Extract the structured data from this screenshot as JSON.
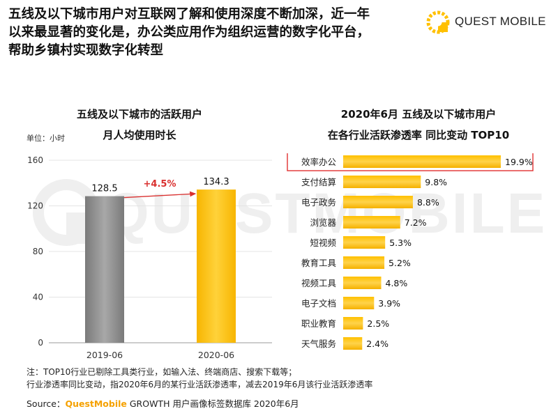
{
  "header": {
    "title_lines": [
      "五线及以下城市用户对互联网了解和使用深度不断加深，近一年",
      "以来最显著的变化是，办公类应用作为组织运营的数字化平台，",
      "帮助乡镇村实现数字化转型"
    ],
    "logo_text": "QUEST MOBILE",
    "watermark_text": "QUESTMOBILE"
  },
  "left_chart": {
    "title_line1": "五线及以下城市的活跃用户",
    "title_line2": "月人均使用时长",
    "unit_label": "单位：小时",
    "growth_label": "+4.5%"
  },
  "right_chart": {
    "title_line1": "2020年6月  五线及以下城市用户",
    "title_line2": "在各行业活跃渗透率 同比变动 TOP10"
  },
  "chart_data": [
    {
      "type": "bar",
      "categories": [
        "2019-06",
        "2020-06"
      ],
      "values": [
        128.5,
        134.3
      ],
      "value_labels": [
        "128.5",
        "134.3"
      ],
      "title": "五线及以下城市的活跃用户 月人均使用时长",
      "ylabel": "单位：小时",
      "ylim": [
        0,
        160
      ],
      "yticks": [
        "0",
        "40",
        "80",
        "120",
        "160"
      ],
      "annotation": "+4.5%",
      "colors": [
        "#8c8c8c",
        "#ffc000"
      ]
    },
    {
      "type": "bar",
      "orientation": "horizontal",
      "categories": [
        "效率办公",
        "支付结算",
        "电子政务",
        "浏览器",
        "短视频",
        "教育工具",
        "视频工具",
        "电子文档",
        "职业教育",
        "天气服务"
      ],
      "values": [
        19.9,
        9.8,
        8.8,
        7.2,
        5.3,
        5.2,
        4.8,
        3.9,
        2.5,
        2.4
      ],
      "value_labels": [
        "19.9%",
        "9.8%",
        "8.8%",
        "7.2%",
        "5.3%",
        "5.2%",
        "4.8%",
        "3.9%",
        "2.5%",
        "2.4%"
      ],
      "title": "2020年6月 五线及以下城市用户 在各行业活跃渗透率 同比变动 TOP10",
      "highlighted_category": "效率办公",
      "colors": [
        "#ffc000",
        "#e03030"
      ]
    }
  ],
  "footer": {
    "note_line1": "注：TOP10行业已剔除工具类行业，如输入法、终端商店、搜索下载等；",
    "note_line2": "行业渗透率同比变动，指2020年6月的某行业活跃渗透率，减去2019年6月该行业活跃渗透率",
    "source_prefix": "Source：",
    "source_brand": "QuestMobile",
    "source_suffix": " GROWTH 用户画像标签数据库 2020年6月"
  }
}
